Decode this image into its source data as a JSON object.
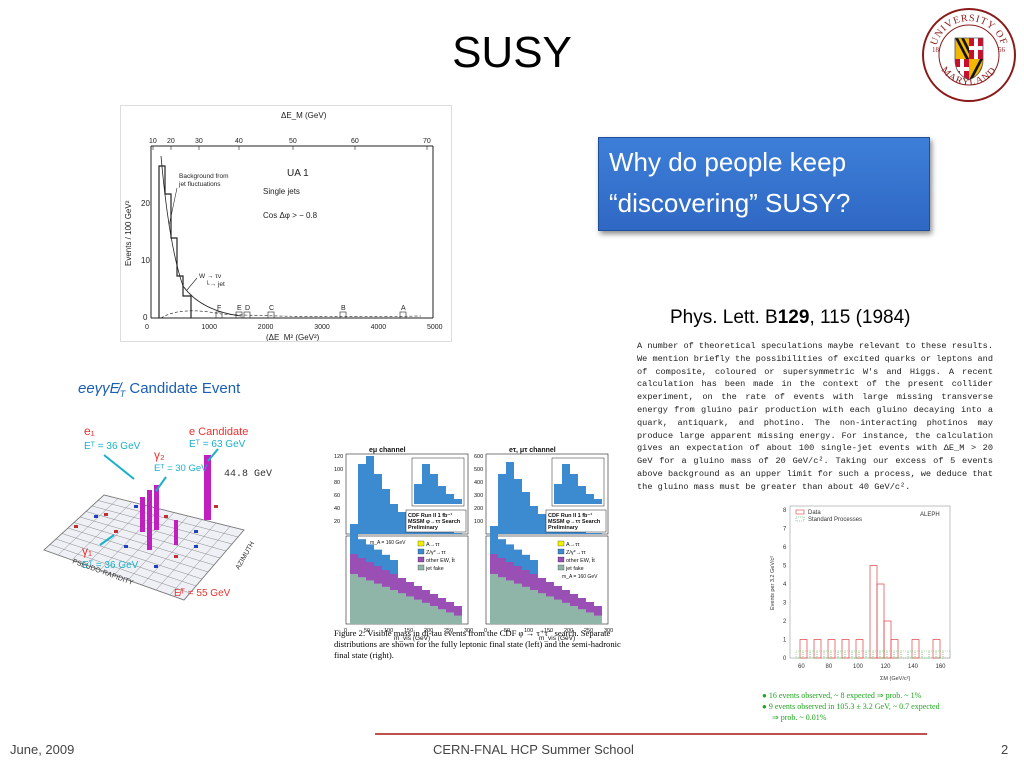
{
  "slide": {
    "title": "SUSY",
    "callout_line1": "Why do people keep",
    "callout_line2": "“discovering” SUSY?",
    "ref_prefix": "Phys. Lett. B",
    "ref_volume": "129",
    "ref_suffix": ", 115 (1984)",
    "paragraph": "A number of theoretical speculations maybe relevant to these results. We mention briefly the possibilities of excited quarks or leptons and of composite, coloured or supersymmetric W's and Higgs. A recent calculation has been made in the context of the present collider experiment, on the rate of events with large missing transverse energy from gluino pair production with each gluino decaying into a quark, antiquark, and photino. The non-interacting photinos may produce large apparent missing energy. For instance, the calculation gives an expectation of about 100 single-jet events with ΔE_M > 20 GeV for a gluino mass of 20 GeV/c². Taking our excess of 5 events above background as an upper limit for such a process, we deduce that the gluino mass must be greater than about 40 GeV/c².",
    "footer_date": "June, 2009",
    "footer_center": "CERN-FNAL HCP Summer School",
    "footer_page": "2"
  },
  "logo": {
    "line1": "UNIVERSITY",
    "line2": "OF",
    "bottom": "MARYLAND",
    "year_left": "18",
    "year_right": "56"
  },
  "ua1": {
    "top_axis_title": "ΔE_M (GeV)",
    "top_ticks": [
      "10",
      "20",
      "30",
      "40",
      "50",
      "60",
      "70"
    ],
    "y_label": "Events / 100 GeV²",
    "y_ticks": [
      "0",
      "10",
      "20"
    ],
    "x_ticks": [
      "0",
      "1000",
      "2000",
      "3000",
      "4000",
      "5000"
    ],
    "x_label": "(ΔE_M² (GeV²)",
    "title": "UA 1",
    "sub1": "Single jets",
    "sub2": "Cos Δφ > − 0.8",
    "bg_label1": "Background from",
    "bg_label2": "jet fluctuations",
    "w_label1": "W → τν",
    "w_label2": "└→ jet",
    "event_letters": [
      "F",
      "E",
      "D",
      "C",
      "B",
      "A"
    ]
  },
  "event": {
    "title_prefix": "eeγγE̸",
    "title_sub": "T",
    "title_rest": " Candidate Event",
    "e1": "e₁",
    "e1_et": "Eᵀ = 36 GeV",
    "ecand": "e Candidate",
    "ecand_et": "Eᵀ = 63 GeV",
    "gamma2": "γ₂",
    "gamma2_et": "Eᵀ = 30 GeV",
    "energy": "44.8 GeV",
    "gamma1": "γ₁",
    "gamma1_et": "Eᵀ = 36 GeV",
    "met": "E̸ᵀ = 55 GeV",
    "axis1": "PSEUDO-RAPIDITY",
    "axis2": "AZIMUTH"
  },
  "cdf": {
    "left_title": "eμ channel",
    "right_title": "eτ, μτ channel",
    "box_text1": "CDF Run II 1 fb⁻¹",
    "box_text2": "MSSM φ→ττ Search",
    "box_text3": "Preliminary",
    "legend": [
      "A→ττ",
      "Z/γ*→ττ",
      "other EW, t̄t",
      "jet fake"
    ],
    "mass_label": "m_A = 160 GeV",
    "x_label": "m_vis (GeV)",
    "left_y_ticks": [
      "120",
      "100",
      "80",
      "60",
      "40",
      "20"
    ],
    "right_y_ticks": [
      "600",
      "500",
      "400",
      "300",
      "200",
      "100"
    ],
    "x_ticks": [
      "0",
      "50",
      "100",
      "150",
      "200",
      "250",
      "300"
    ],
    "caption": "Figure 2: Visible mass in di-tau events from the CDF φ → τ⁺τ⁻ search. Separate distributions are shown for the fully leptonic final state (left) and the semi-hadronic final state (right)."
  },
  "aleph": {
    "legend_data": "Data",
    "legend_sp": "Standard Processes",
    "tag": "ALEPH",
    "y_label": "Events per 3.2 GeV/c²",
    "x_label": "ΣM (GeV/c²)",
    "x_ticks": [
      "60",
      "80",
      "100",
      "120",
      "140",
      "160"
    ],
    "y_ticks": [
      "0",
      "1",
      "2",
      "3",
      "4",
      "5",
      "6",
      "7",
      "8"
    ],
    "note1": "● 16 events observed, ~ 8 expected ⇒ prob. ~ 1%",
    "note2": "● 9 events observed in 105.3 ± 3.2 GeV, ~ 0.7 expected",
    "note3": "⇒ prob. ~ 0.01%"
  },
  "colors": {
    "callout": "#3574d1",
    "footer_line": "#c0504d",
    "event_red": "#e8322f",
    "event_cyan": "#1ab0c8",
    "event_magenta": "#c020c0",
    "cdf_blue": "#3c8ad0",
    "cdf_purple": "#9a4fb4",
    "cdf_grey": "#8fb5a8",
    "cdf_yellow": "#f0f000",
    "aleph_red": "#e04040",
    "aleph_green": "#40b040"
  }
}
